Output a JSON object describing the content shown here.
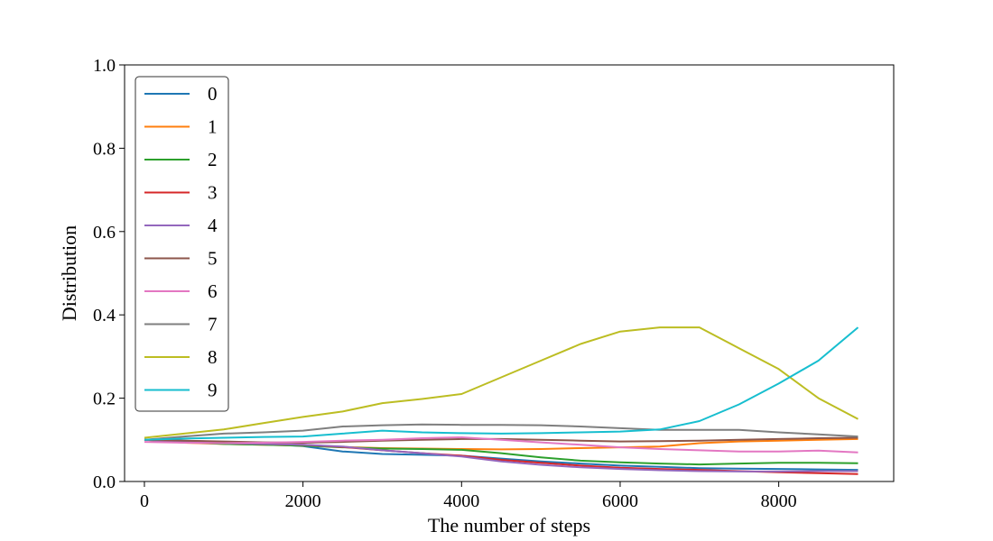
{
  "chart_data": {
    "type": "line",
    "title": "",
    "xlabel": "The number of steps",
    "ylabel": "Distribution",
    "xlim": [
      -250,
      9450
    ],
    "ylim": [
      0.0,
      1.0
    ],
    "xticks": [
      0,
      2000,
      4000,
      6000,
      8000
    ],
    "xtick_labels": [
      "0",
      "2000",
      "4000",
      "6000",
      "8000"
    ],
    "yticks": [
      0.0,
      0.2,
      0.4,
      0.6,
      0.8,
      1.0
    ],
    "ytick_labels": [
      "0.0",
      "0.2",
      "0.4",
      "0.6",
      "0.8",
      "1.0"
    ],
    "grid": false,
    "legend_position": "upper-left",
    "x": [
      0,
      500,
      1000,
      1500,
      2000,
      2500,
      3000,
      3500,
      4000,
      4500,
      5000,
      5500,
      6000,
      6500,
      7000,
      7500,
      8000,
      8500,
      9000
    ],
    "series": [
      {
        "name": "0",
        "color": "#1f77b4",
        "values": [
          0.1,
          0.098,
          0.095,
          0.09,
          0.085,
          0.072,
          0.066,
          0.064,
          0.062,
          0.055,
          0.048,
          0.043,
          0.038,
          0.035,
          0.032,
          0.031,
          0.03,
          0.029,
          0.028
        ]
      },
      {
        "name": "1",
        "color": "#ff7f0e",
        "values": [
          0.1,
          0.093,
          0.09,
          0.088,
          0.086,
          0.083,
          0.08,
          0.079,
          0.078,
          0.077,
          0.078,
          0.08,
          0.082,
          0.084,
          0.092,
          0.096,
          0.098,
          0.1,
          0.102
        ]
      },
      {
        "name": "2",
        "color": "#2ca02c",
        "values": [
          0.1,
          0.095,
          0.09,
          0.088,
          0.086,
          0.082,
          0.079,
          0.078,
          0.076,
          0.068,
          0.058,
          0.05,
          0.046,
          0.043,
          0.041,
          0.043,
          0.045,
          0.045,
          0.044
        ]
      },
      {
        "name": "3",
        "color": "#d62728",
        "values": [
          0.1,
          0.096,
          0.093,
          0.09,
          0.088,
          0.083,
          0.075,
          0.068,
          0.062,
          0.052,
          0.045,
          0.038,
          0.033,
          0.03,
          0.028,
          0.025,
          0.022,
          0.02,
          0.018
        ]
      },
      {
        "name": "4",
        "color": "#9467bd",
        "values": [
          0.1,
          0.095,
          0.092,
          0.09,
          0.088,
          0.084,
          0.075,
          0.068,
          0.06,
          0.048,
          0.04,
          0.034,
          0.03,
          0.027,
          0.025,
          0.024,
          0.024,
          0.025,
          0.025
        ]
      },
      {
        "name": "5",
        "color": "#8c564b",
        "values": [
          0.1,
          0.098,
          0.096,
          0.094,
          0.093,
          0.095,
          0.098,
          0.1,
          0.102,
          0.102,
          0.1,
          0.098,
          0.096,
          0.097,
          0.098,
          0.1,
          0.102,
          0.104,
          0.105
        ]
      },
      {
        "name": "6",
        "color": "#e377c2",
        "values": [
          0.095,
          0.093,
          0.092,
          0.093,
          0.095,
          0.098,
          0.1,
          0.104,
          0.106,
          0.1,
          0.094,
          0.088,
          0.082,
          0.078,
          0.075,
          0.072,
          0.072,
          0.074,
          0.07
        ]
      },
      {
        "name": "7",
        "color": "#7f7f7f",
        "values": [
          0.1,
          0.108,
          0.115,
          0.118,
          0.122,
          0.132,
          0.135,
          0.137,
          0.136,
          0.136,
          0.135,
          0.132,
          0.128,
          0.124,
          0.124,
          0.124,
          0.118,
          0.113,
          0.108
        ]
      },
      {
        "name": "8",
        "color": "#bcbd22",
        "values": [
          0.105,
          0.115,
          0.125,
          0.14,
          0.155,
          0.168,
          0.188,
          0.198,
          0.21,
          0.25,
          0.29,
          0.33,
          0.36,
          0.37,
          0.37,
          0.32,
          0.27,
          0.2,
          0.15
        ]
      },
      {
        "name": "9",
        "color": "#17becf",
        "values": [
          0.1,
          0.103,
          0.105,
          0.107,
          0.108,
          0.115,
          0.122,
          0.118,
          0.116,
          0.115,
          0.116,
          0.118,
          0.12,
          0.125,
          0.145,
          0.185,
          0.235,
          0.29,
          0.37
        ]
      }
    ]
  }
}
